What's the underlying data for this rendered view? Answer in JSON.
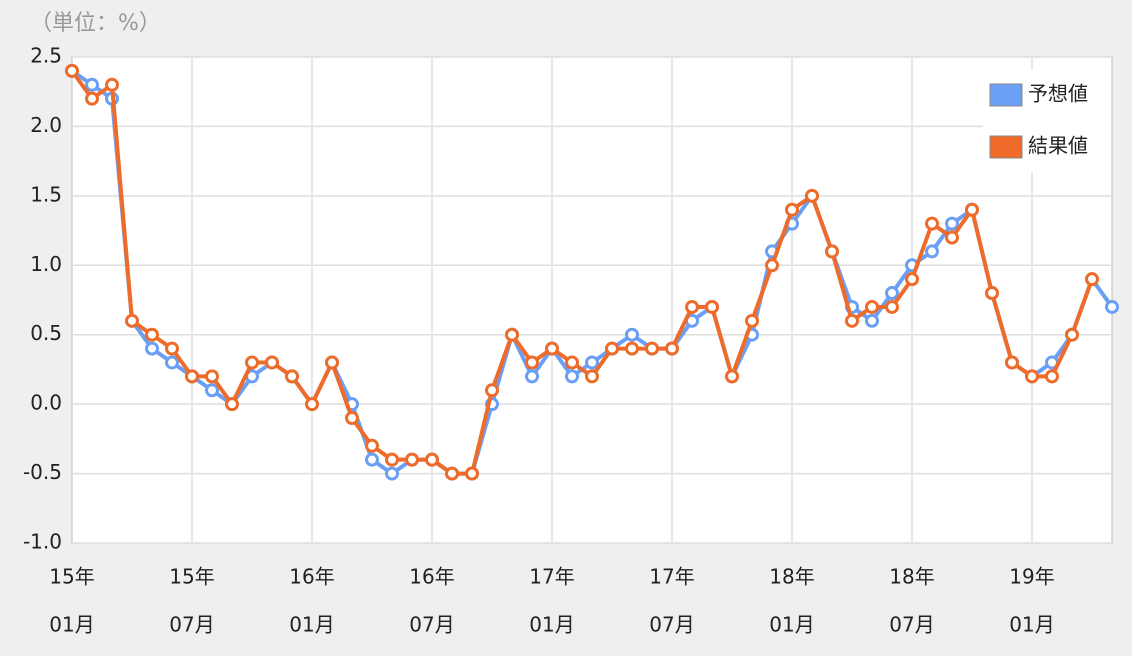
{
  "chart_data": {
    "type": "line",
    "unit_label": "（単位：%）",
    "categories": [
      [
        "15年",
        "01月"
      ],
      null,
      null,
      null,
      null,
      null,
      [
        "15年",
        "07月"
      ],
      null,
      null,
      null,
      null,
      null,
      [
        "16年",
        "01月"
      ],
      null,
      null,
      null,
      null,
      null,
      [
        "16年",
        "07月"
      ],
      null,
      null,
      null,
      null,
      null,
      [
        "17年",
        "01月"
      ],
      null,
      null,
      null,
      null,
      null,
      [
        "17年",
        "07月"
      ],
      null,
      null,
      null,
      null,
      null,
      [
        "18年",
        "01月"
      ],
      null,
      null,
      null,
      null,
      null,
      [
        "18年",
        "07月"
      ],
      null,
      null,
      null,
      null,
      null,
      [
        "19年",
        "01月"
      ],
      null,
      null,
      null,
      null
    ],
    "series": [
      {
        "name": "予想値",
        "color": "#6a9ff5",
        "values": [
          2.4,
          2.3,
          2.2,
          0.6,
          0.4,
          0.3,
          0.2,
          0.1,
          0.0,
          0.2,
          0.3,
          0.2,
          0.0,
          0.3,
          0.0,
          -0.4,
          -0.5,
          -0.4,
          -0.4,
          -0.5,
          -0.5,
          0.0,
          0.5,
          0.2,
          0.4,
          0.2,
          0.3,
          0.4,
          0.5,
          0.4,
          0.4,
          0.6,
          0.7,
          0.2,
          0.5,
          1.1,
          1.3,
          1.5,
          1.1,
          0.7,
          0.6,
          0.8,
          1.0,
          1.1,
          1.3,
          1.4,
          0.8,
          0.3,
          0.2,
          0.3,
          0.5,
          0.9,
          0.7
        ]
      },
      {
        "name": "結果値",
        "color": "#ef6b2a",
        "values": [
          2.4,
          2.2,
          2.3,
          0.6,
          0.5,
          0.4,
          0.2,
          0.2,
          0.0,
          0.3,
          0.3,
          0.2,
          0.0,
          0.3,
          -0.1,
          -0.3,
          -0.4,
          -0.4,
          -0.4,
          -0.5,
          -0.5,
          0.1,
          0.5,
          0.3,
          0.4,
          0.3,
          0.2,
          0.4,
          0.4,
          0.4,
          0.4,
          0.7,
          0.7,
          0.2,
          0.6,
          1.0,
          1.4,
          1.5,
          1.1,
          0.6,
          0.7,
          0.7,
          0.9,
          1.3,
          1.2,
          1.4,
          0.8,
          0.3,
          0.2,
          0.2,
          0.5,
          0.9,
          null
        ]
      }
    ],
    "ylim": [
      -1.0,
      2.5
    ],
    "yticks": [
      {
        "value": 2.5,
        "label": "2.5"
      },
      {
        "value": 2.0,
        "label": "2.0"
      },
      {
        "value": 1.5,
        "label": "1.5"
      },
      {
        "value": 1.0,
        "label": "1.0"
      },
      {
        "value": 0.5,
        "label": "0.5"
      },
      {
        "value": 0.0,
        "label": "0.0"
      },
      {
        "value": -0.5,
        "label": "-0.5"
      },
      {
        "value": -1.0,
        "label": "-1.0"
      }
    ],
    "grid": true,
    "legend": "upper right"
  }
}
